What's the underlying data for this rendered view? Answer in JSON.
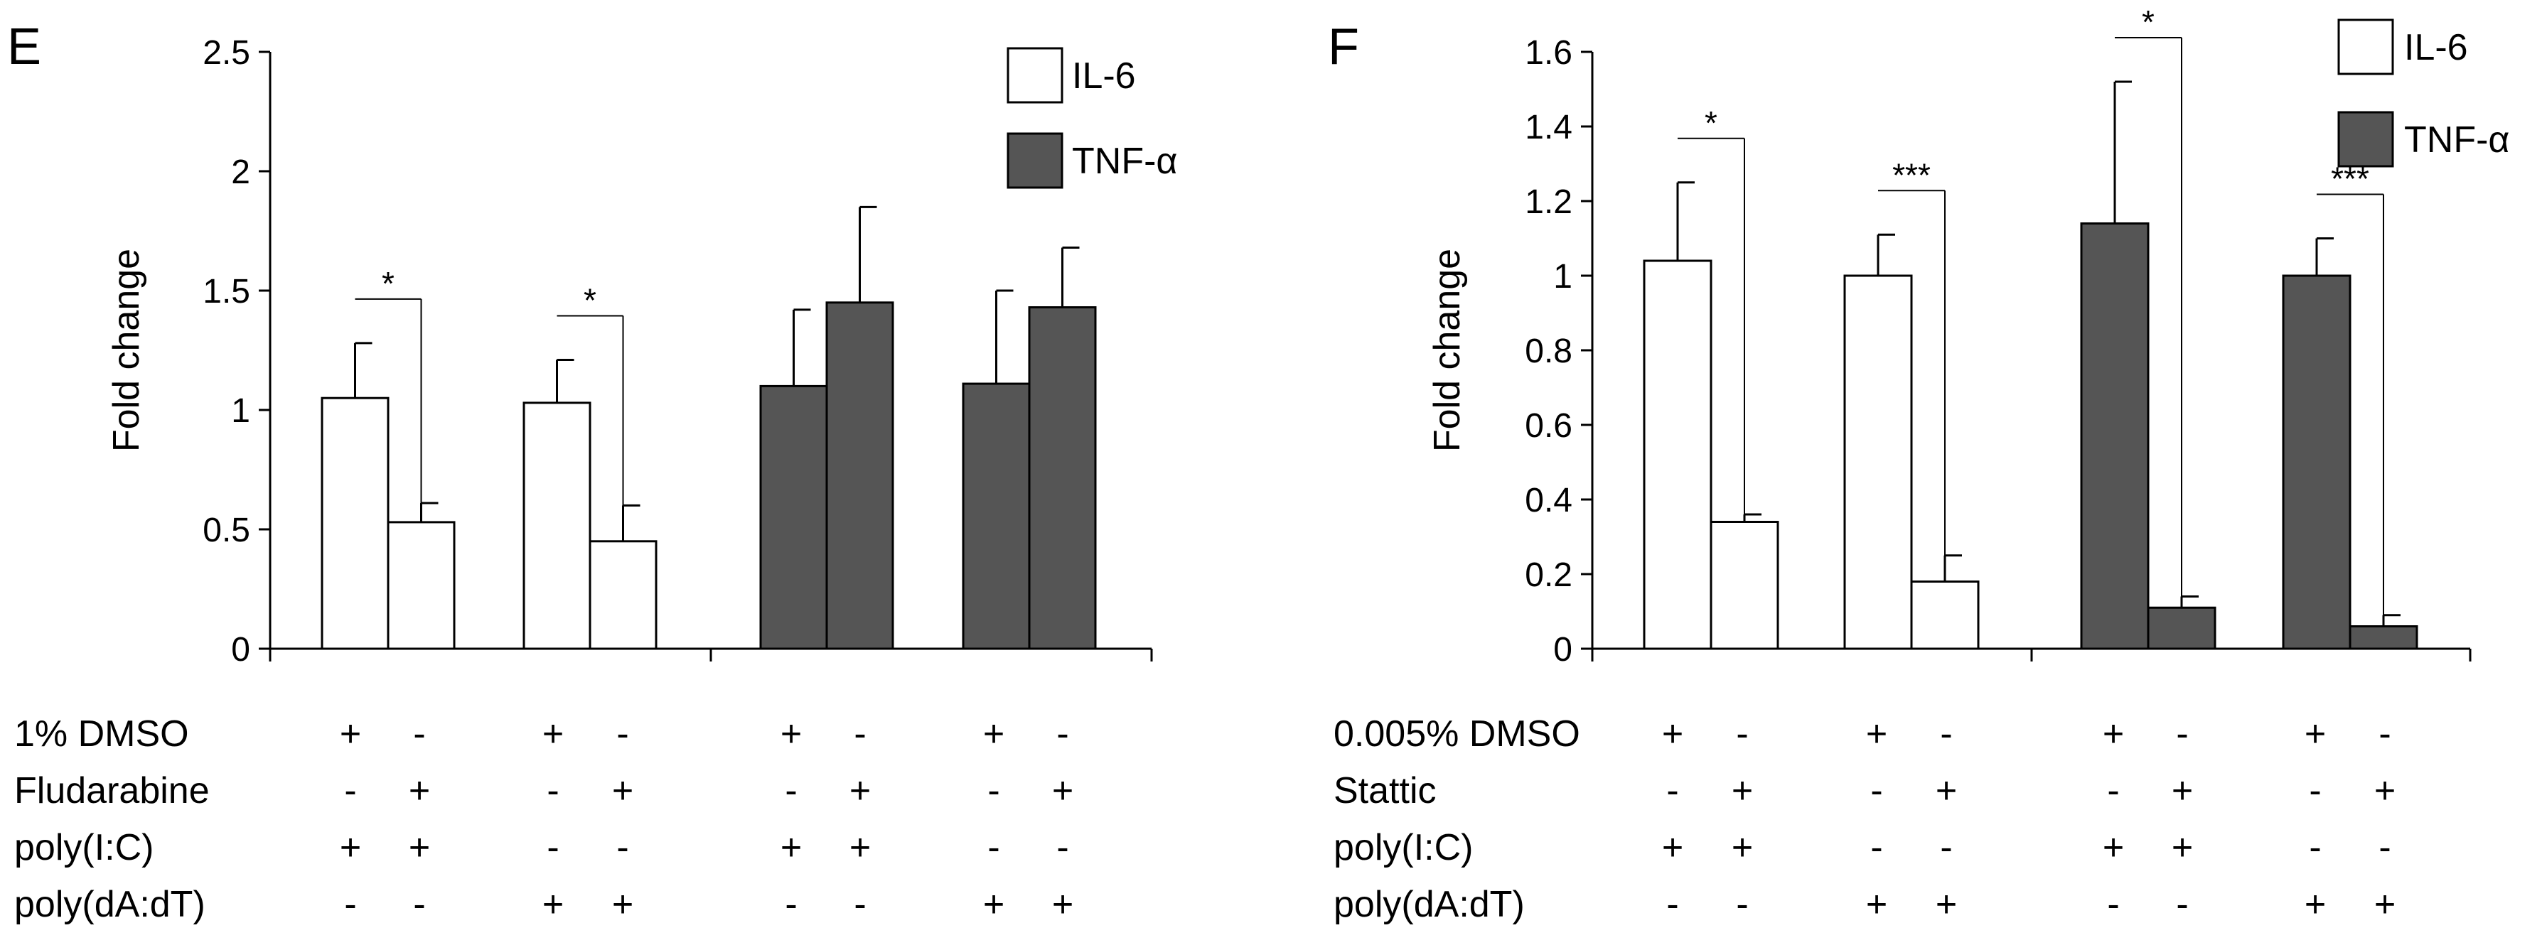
{
  "chart_data": [
    {
      "type": "bar",
      "panel": "E",
      "ylabel": "Fold change",
      "ylim": [
        0,
        2.5
      ],
      "yticks": [
        "0",
        "0.5",
        "1",
        "1.5",
        "2",
        "2.5"
      ],
      "legend": [
        {
          "name": "IL-6",
          "color": "#ffffff"
        },
        {
          "name": "TNF-α",
          "color": "#555555"
        }
      ],
      "groups": [
        {
          "cytokine": "IL-6",
          "bars": [
            {
              "value": 1.05,
              "error": 0.23
            },
            {
              "value": 0.53,
              "error": 0.08
            }
          ],
          "significance": "*"
        },
        {
          "cytokine": "IL-6",
          "bars": [
            {
              "value": 1.03,
              "error": 0.18
            },
            {
              "value": 0.45,
              "error": 0.15
            }
          ],
          "significance": "*"
        },
        {
          "cytokine": "TNF-α",
          "bars": [
            {
              "value": 1.1,
              "error": 0.32
            },
            {
              "value": 1.45,
              "error": 0.4
            }
          ],
          "significance": ""
        },
        {
          "cytokine": "TNF-α",
          "bars": [
            {
              "value": 1.11,
              "error": 0.39
            },
            {
              "value": 1.43,
              "error": 0.25
            }
          ],
          "significance": ""
        }
      ],
      "conditions": [
        {
          "label": "1% DMSO",
          "signs": [
            "+",
            "-",
            "+",
            "-",
            "+",
            "-",
            "+",
            "-"
          ]
        },
        {
          "label": "Fludarabine",
          "signs": [
            "-",
            "+",
            "-",
            "+",
            "-",
            "+",
            "-",
            "+"
          ]
        },
        {
          "label": "poly(I:C)",
          "signs": [
            "+",
            "+",
            "-",
            "-",
            "+",
            "+",
            "-",
            "-"
          ]
        },
        {
          "label": "poly(dA:dT)",
          "signs": [
            "-",
            "-",
            "+",
            "+",
            "-",
            "-",
            "+",
            "+"
          ]
        }
      ]
    },
    {
      "type": "bar",
      "panel": "F",
      "ylabel": "Fold change",
      "ylim": [
        0,
        1.6
      ],
      "yticks": [
        "0",
        "0.2",
        "0.4",
        "0.6",
        "0.8",
        "1",
        "1.2",
        "1.4",
        "1.6"
      ],
      "legend": [
        {
          "name": "IL-6",
          "color": "#ffffff"
        },
        {
          "name": "TNF-α",
          "color": "#555555"
        }
      ],
      "groups": [
        {
          "cytokine": "IL-6",
          "bars": [
            {
              "value": 1.04,
              "error": 0.21
            },
            {
              "value": 0.34,
              "error": 0.02
            }
          ],
          "significance": "*"
        },
        {
          "cytokine": "IL-6",
          "bars": [
            {
              "value": 1.0,
              "error": 0.11
            },
            {
              "value": 0.18,
              "error": 0.07
            }
          ],
          "significance": "***"
        },
        {
          "cytokine": "TNF-α",
          "bars": [
            {
              "value": 1.14,
              "error": 0.38
            },
            {
              "value": 0.11,
              "error": 0.03
            }
          ],
          "significance": "*"
        },
        {
          "cytokine": "TNF-α",
          "bars": [
            {
              "value": 1.0,
              "error": 0.1
            },
            {
              "value": 0.06,
              "error": 0.03
            }
          ],
          "significance": "***"
        }
      ],
      "conditions": [
        {
          "label": "0.005% DMSO",
          "signs": [
            "+",
            "-",
            "+",
            "-",
            "+",
            "-",
            "+",
            "-"
          ]
        },
        {
          "label": "Stattic",
          "signs": [
            "-",
            "+",
            "-",
            "+",
            "-",
            "+",
            "-",
            "+"
          ]
        },
        {
          "label": "poly(I:C)",
          "signs": [
            "+",
            "+",
            "-",
            "-",
            "+",
            "+",
            "-",
            "-"
          ]
        },
        {
          "label": "poly(dA:dT)",
          "signs": [
            "-",
            "-",
            "+",
            "+",
            "-",
            "-",
            "+",
            "+"
          ]
        }
      ]
    }
  ]
}
